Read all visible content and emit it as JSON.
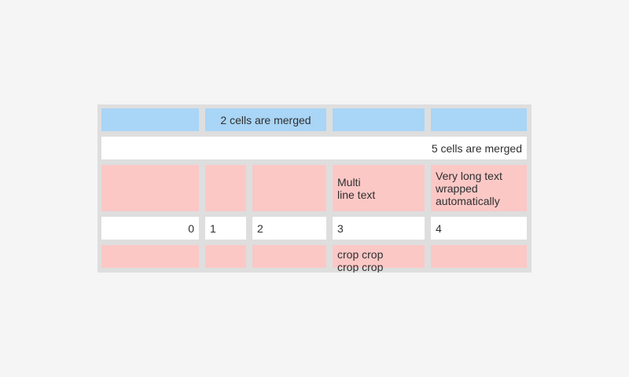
{
  "page": {
    "background_color": "#f5f5f5"
  },
  "sheet": {
    "widget": "spreadsheet-grid",
    "colors": {
      "frame": "#dedede",
      "blue_cell": "#a9d5f6",
      "pink_cell": "#fbc8c6",
      "white_cell": "#ffffff",
      "text": "#2f2f2f"
    },
    "rows": [
      {
        "cells": [
          {
            "text": ""
          },
          {
            "text": "2 cells are merged",
            "merged": "spans columns 2-3"
          },
          {
            "text": ""
          },
          {
            "text": ""
          }
        ]
      },
      {
        "cells": [
          {
            "text": "5 cells are merged",
            "merged": "spans all 5 columns"
          }
        ]
      },
      {
        "cells": [
          {
            "text": ""
          },
          {
            "text": ""
          },
          {
            "text": ""
          },
          {
            "text": "Multi\nline text"
          },
          {
            "text": "Very long text wrapped automatically"
          }
        ]
      },
      {
        "cells": [
          {
            "text": "0"
          },
          {
            "text": "1"
          },
          {
            "text": "2"
          },
          {
            "text": "3"
          },
          {
            "text": "4"
          }
        ]
      },
      {
        "cells": [
          {
            "text": ""
          },
          {
            "text": ""
          },
          {
            "text": ""
          },
          {
            "text": "crop crop\ncrop crop"
          },
          {
            "text": ""
          }
        ]
      }
    ]
  }
}
